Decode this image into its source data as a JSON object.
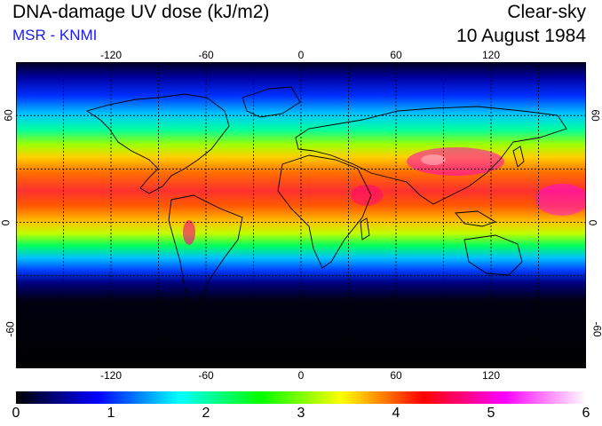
{
  "header": {
    "title": "DNA-damage UV dose (kJ/m2)",
    "credit": "MSR - KNMI",
    "sky_condition": "Clear-sky",
    "date": "10 August 1984"
  },
  "map": {
    "lon_ticks": [
      "-120",
      "-60",
      "0",
      "60",
      "120"
    ],
    "lat_ticks": [
      "60",
      "0",
      "-60"
    ],
    "graticule_lon": [
      -150,
      -120,
      -90,
      -60,
      -30,
      0,
      30,
      60,
      90,
      120,
      150
    ],
    "graticule_lat": [
      -60,
      -30,
      0,
      30,
      60
    ]
  },
  "colorbar": {
    "labels": [
      "0",
      "1",
      "2",
      "3",
      "4",
      "5",
      "6"
    ],
    "stops": [
      "#000000",
      "#0000ff",
      "#00ffff",
      "#00ff00",
      "#ffff00",
      "#ff0000",
      "#ff00ff",
      "#ffffff"
    ]
  },
  "colors": {
    "credit": "#1a1aff",
    "grid": "#000000"
  }
}
